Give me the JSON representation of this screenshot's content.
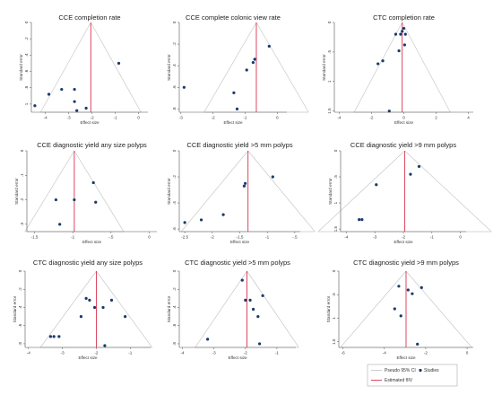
{
  "chart_data": [
    {
      "type": "scatter",
      "title": "CCE completion rate",
      "xlabel": "Effect size",
      "ylabel": "Standard error",
      "xlim": [
        -4.6,
        0.4
      ],
      "xticks": [
        -4,
        -3,
        -2,
        -1,
        0
      ],
      "ylim": [
        0,
        1.1
      ],
      "yticks": [
        0,
        0.2,
        0.4,
        0.6,
        0.8,
        1
      ],
      "ytick_labels": [
        "0",
        ".2",
        ".4",
        ".6",
        ".8",
        "1"
      ],
      "pooled": -2.05,
      "x": [
        -0.85,
        -3.3,
        -3.85,
        -2.75,
        -2.75,
        -4.45,
        -2.65,
        -2.25
      ],
      "y": [
        0.5,
        0.82,
        0.88,
        0.82,
        0.97,
        1.02,
        1.08,
        1.05
      ]
    },
    {
      "type": "scatter",
      "title": "CCE complete colonic view rate",
      "xlabel": "Effect size",
      "ylabel": "Standard error",
      "xlim": [
        -3.05,
        0.3
      ],
      "xticks": [
        -3,
        -2,
        -1,
        0
      ],
      "ylim": [
        0,
        0.83
      ],
      "yticks": [
        0,
        0.2,
        0.4,
        0.6,
        0.8
      ],
      "ytick_labels": [
        "0",
        ".2",
        ".4",
        ".6",
        ".8"
      ],
      "pooled": -0.65,
      "x": [
        -0.25,
        -0.7,
        -0.75,
        -0.95,
        -2.9,
        -1.35,
        -1.25
      ],
      "y": [
        0.22,
        0.34,
        0.37,
        0.44,
        0.6,
        0.65,
        0.8
      ]
    },
    {
      "type": "scatter",
      "title": "CTC completion rate",
      "xlabel": "Effect size",
      "ylabel": "Standard error",
      "xlim": [
        -4.3,
        4.3
      ],
      "xticks": [
        -4,
        -2,
        0,
        2,
        4
      ],
      "ylim": [
        0,
        1.52
      ],
      "yticks": [
        0,
        0.5,
        1,
        1.5
      ],
      "ytick_labels": [
        "0",
        ".5",
        "1",
        "1.5"
      ],
      "pooled": -0.1,
      "x": [
        0.0,
        -0.1,
        0.1,
        -0.2,
        -0.5,
        0.05,
        -0.3,
        -1.3,
        -1.6,
        -0.9
      ],
      "y": [
        0.1,
        0.15,
        0.2,
        0.2,
        0.2,
        0.38,
        0.48,
        0.65,
        0.7,
        1.5
      ]
    },
    {
      "type": "scatter",
      "title": "CCE diagnostic yield any size polyps",
      "xlabel": "Effect size",
      "ylabel": "Standard error",
      "xlim": [
        -1.6,
        0.1
      ],
      "xticks": [
        -1.5,
        -1,
        -0.5,
        0
      ],
      "xtick_labels": [
        "-1.5",
        "-1",
        "-.5",
        "0"
      ],
      "ylim": [
        0,
        0.33
      ],
      "yticks": [
        0,
        0.1,
        0.2,
        0.3
      ],
      "ytick_labels": [
        "0",
        ".1",
        ".2",
        ".3"
      ],
      "pooled": -0.98,
      "x": [
        -0.73,
        -1.22,
        -0.98,
        -0.7,
        -1.17
      ],
      "y": [
        0.13,
        0.2,
        0.2,
        0.21,
        0.3
      ]
    },
    {
      "type": "scatter",
      "title": "CCE diagnostic yield >5 mm polyps",
      "xlabel": "Effect size",
      "ylabel": "Standard error",
      "xlim": [
        -2.6,
        -0.4
      ],
      "xticks": [
        -2.5,
        -2,
        -1.5,
        -1,
        -0.5
      ],
      "xtick_labels": [
        "-2.5",
        "-2",
        "-1.5",
        "-1",
        "-.5"
      ],
      "ylim": [
        0,
        0.62
      ],
      "yticks": [
        0,
        0.2,
        0.4,
        0.6
      ],
      "ytick_labels": [
        "0",
        ".2",
        ".4",
        ".6"
      ],
      "pooled": -1.35,
      "x": [
        -0.9,
        -1.4,
        -1.42,
        -1.8,
        -2.2,
        -2.5
      ],
      "y": [
        0.2,
        0.25,
        0.27,
        0.49,
        0.53,
        0.55
      ]
    },
    {
      "type": "scatter",
      "title": "CCE diagnostic yield >9 mm polyps",
      "xlabel": "Effect size",
      "ylabel": "Standard error",
      "xlim": [
        -4.2,
        0.2
      ],
      "xticks": [
        -4,
        -3,
        -2,
        -1,
        0
      ],
      "ylim": [
        0,
        1.55
      ],
      "yticks": [
        0,
        0.5,
        1,
        1.5
      ],
      "ytick_labels": [
        "0",
        ".5",
        "1",
        "1.5"
      ],
      "pooled": -1.95,
      "x": [
        -1.45,
        -1.75,
        -2.95,
        -3.45,
        -3.55
      ],
      "y": [
        0.3,
        0.45,
        0.65,
        1.32,
        1.32
      ]
    },
    {
      "type": "scatter",
      "title": "CTC diagnostic yield any size polyps",
      "xlabel": "Effect size",
      "ylabel": "Standard error",
      "xlim": [
        -4.1,
        -0.4
      ],
      "xticks": [
        -4,
        -3,
        -2,
        -1
      ],
      "ylim": [
        0,
        0.84
      ],
      "yticks": [
        0,
        0.2,
        0.4,
        0.6,
        0.8
      ],
      "ytick_labels": [
        "0",
        ".2",
        ".4",
        ".6",
        ".8"
      ],
      "pooled": -2.0,
      "x": [
        -2.3,
        -2.2,
        -1.55,
        -2.05,
        -1.8,
        -1.15,
        -2.45,
        -3.1,
        -3.35,
        -3.25,
        -1.75
      ],
      "y": [
        0.3,
        0.32,
        0.32,
        0.4,
        0.4,
        0.5,
        0.5,
        0.72,
        0.72,
        0.72,
        0.82
      ]
    },
    {
      "type": "scatter",
      "title": "CTC diagnostic yield >5 mm polyps",
      "xlabel": "Effect size",
      "ylabel": "Standard error",
      "xlim": [
        -4.1,
        -0.4
      ],
      "xticks": [
        -4,
        -3,
        -2,
        -1
      ],
      "ylim": [
        0,
        0.84
      ],
      "yticks": [
        0,
        0.2,
        0.4,
        0.6,
        0.8
      ],
      "ytick_labels": [
        "0",
        ".2",
        ".4",
        ".6",
        ".8"
      ],
      "pooled": -1.95,
      "x": [
        -2.1,
        -1.45,
        -1.85,
        -2.0,
        -1.75,
        -1.6,
        -3.2,
        -1.55
      ],
      "y": [
        0.1,
        0.27,
        0.32,
        0.32,
        0.42,
        0.5,
        0.75,
        0.8
      ]
    },
    {
      "type": "scatter",
      "title": "CTC diagnostic yield >9 mm polyps",
      "xlabel": "Effect size",
      "ylabel": "Standard error",
      "xlim": [
        -6.2,
        0.3
      ],
      "xticks": [
        -6,
        -4,
        -2,
        0
      ],
      "ylim": [
        0,
        1.62
      ],
      "yticks": [
        0,
        0.5,
        1,
        1.5
      ],
      "ytick_labels": [
        "0",
        ".5",
        "1",
        "1.5"
      ],
      "pooled": -2.95,
      "x": [
        -2.2,
        -3.3,
        -2.85,
        -2.65,
        -3.5,
        -3.2,
        -2.4
      ],
      "y": [
        0.35,
        0.32,
        0.4,
        0.48,
        0.8,
        0.95,
        1.55
      ]
    }
  ],
  "legend": {
    "items": [
      {
        "label": "Pseudo 95% CI",
        "kind": "line",
        "color": "#c8c8c8"
      },
      {
        "label": "Studies",
        "kind": "marker",
        "color": "#1a3a6b"
      },
      {
        "label": "Estimated θIV",
        "kind": "line",
        "color": "#d9334e"
      }
    ]
  },
  "colors": {
    "marker": "#1a3a6b",
    "pooled_line": "#d9334e",
    "ci_lines": "#c8c8c8",
    "axis": "#555555"
  }
}
